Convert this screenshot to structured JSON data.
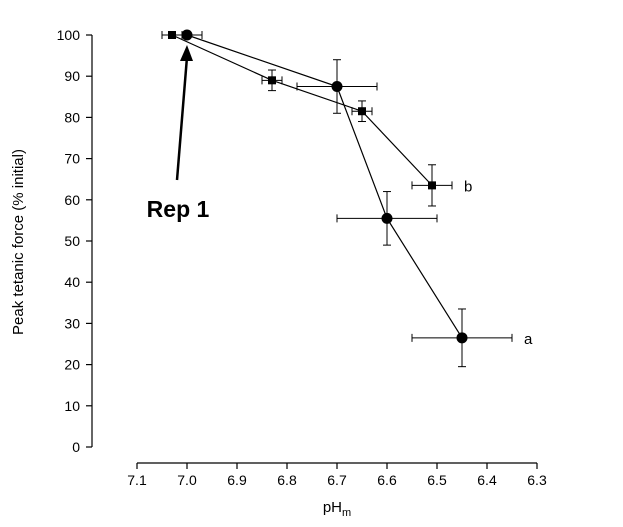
{
  "chart_data": {
    "type": "scatter",
    "title": "",
    "xlabel": "pH",
    "xlabel_sub": "m",
    "ylabel": "Peak tetanic force (% initial)",
    "xlim": [
      7.1,
      6.3
    ],
    "ylim": [
      0,
      100
    ],
    "x_ticks": [
      "7.1",
      "7.0",
      "6.9",
      "6.8",
      "6.7",
      "6.6",
      "6.5",
      "6.4",
      "6.3"
    ],
    "y_ticks": [
      "0",
      "10",
      "20",
      "30",
      "40",
      "50",
      "60",
      "70",
      "80",
      "90",
      "100"
    ],
    "grid": false,
    "series": [
      {
        "name": "a",
        "marker": "circle",
        "points": [
          {
            "x": 7.0,
            "y": 100,
            "xerr": 0.03,
            "yerr": 0
          },
          {
            "x": 6.7,
            "y": 87.5,
            "xerr": 0.08,
            "yerr": 6.5
          },
          {
            "x": 6.6,
            "y": 55.5,
            "xerr": 0.1,
            "yerr": 6.5
          },
          {
            "x": 6.45,
            "y": 26.5,
            "xerr": 0.1,
            "yerr": 7.0
          }
        ]
      },
      {
        "name": "b",
        "marker": "square",
        "points": [
          {
            "x": 7.03,
            "y": 100,
            "xerr": 0.02,
            "yerr": 0
          },
          {
            "x": 6.83,
            "y": 89,
            "xerr": 0.02,
            "yerr": 2.5
          },
          {
            "x": 6.65,
            "y": 81.5,
            "xerr": 0.02,
            "yerr": 2.5
          },
          {
            "x": 6.51,
            "y": 63.5,
            "xerr": 0.04,
            "yerr": 5.0
          }
        ]
      }
    ],
    "annotations": [
      {
        "text": "Rep 1",
        "points_to_series": "a",
        "points_to_index": 0
      }
    ]
  }
}
